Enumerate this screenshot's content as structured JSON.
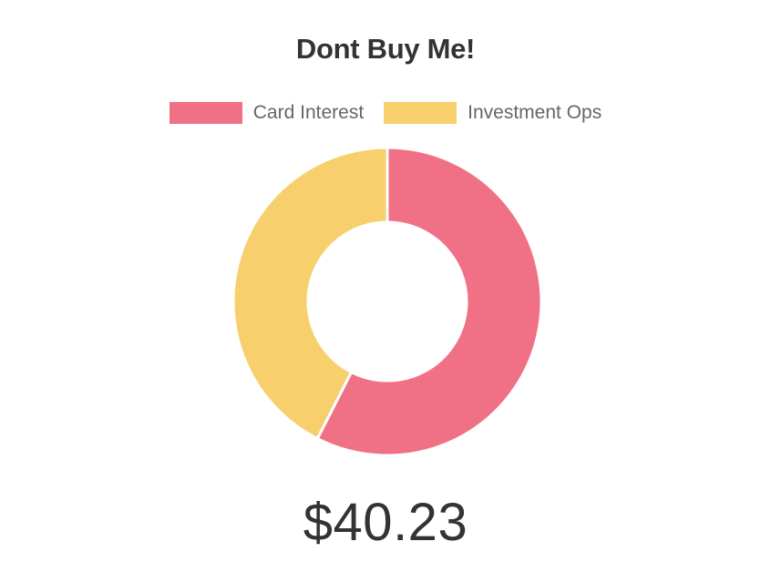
{
  "chart_data": {
    "type": "pie",
    "title": "Dont Buy Me!",
    "categories": [
      "Card Interest",
      "Investment Ops"
    ],
    "values": [
      57.5,
      42.5
    ],
    "colors": [
      "#f07185",
      "#f7cf6c"
    ],
    "legend_position": "top",
    "doughnut": true
  },
  "total": {
    "value": "$40.23"
  }
}
